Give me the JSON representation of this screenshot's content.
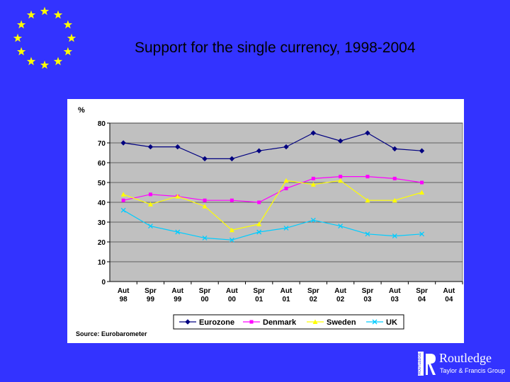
{
  "slide": {
    "title": "Support for the single currency, 1998-2004",
    "source": "Source: Eurobarometer",
    "background": "#3333ff",
    "eu_flag_stars": 12,
    "logo": {
      "name": "Routledge",
      "tagline": "Taylor & Francis Group",
      "vertical_text": "ROUTLEDGE"
    }
  },
  "chart_data": {
    "type": "line",
    "ylabel": "%",
    "ylim": [
      0,
      80
    ],
    "yticks": [
      0,
      10,
      20,
      30,
      40,
      50,
      60,
      70,
      80
    ],
    "categories": [
      [
        "Aut",
        "98"
      ],
      [
        "Spr",
        "99"
      ],
      [
        "Aut",
        "99"
      ],
      [
        "Spr",
        "00"
      ],
      [
        "Aut",
        "00"
      ],
      [
        "Spr",
        "01"
      ],
      [
        "Aut",
        "01"
      ],
      [
        "Spr",
        "02"
      ],
      [
        "Aut",
        "02"
      ],
      [
        "Spr",
        "03"
      ],
      [
        "Aut",
        "03"
      ],
      [
        "Spr",
        "04"
      ],
      [
        "Aut",
        "04"
      ]
    ],
    "legend_position": "bottom",
    "series": [
      {
        "name": "Eurozone",
        "color": "#000080",
        "marker": "diamond",
        "values": [
          70,
          68,
          68,
          62,
          62,
          66,
          68,
          75,
          71,
          75,
          67,
          66,
          null
        ]
      },
      {
        "name": "Denmark",
        "color": "#ff00ff",
        "marker": "square",
        "values": [
          41,
          44,
          43,
          41,
          41,
          40,
          47,
          52,
          53,
          53,
          52,
          50,
          null
        ]
      },
      {
        "name": "Sweden",
        "color": "#ffff00",
        "marker": "triangle",
        "values": [
          44,
          39,
          43,
          38,
          26,
          29,
          51,
          49,
          51,
          41,
          41,
          45,
          null
        ]
      },
      {
        "name": "UK",
        "color": "#00ccff",
        "marker": "x",
        "values": [
          36,
          28,
          25,
          22,
          21,
          25,
          27,
          31,
          28,
          24,
          23,
          24,
          null
        ]
      }
    ]
  }
}
